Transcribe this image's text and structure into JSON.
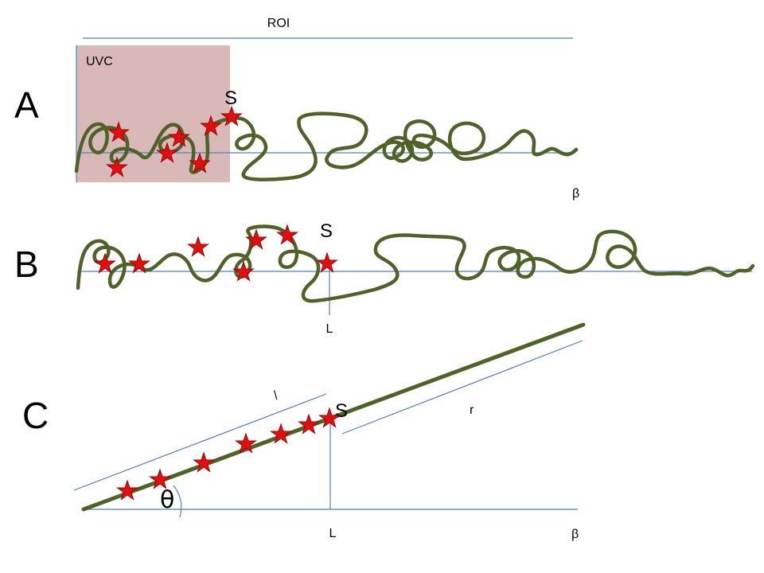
{
  "colors": {
    "chain": "#4f6228",
    "guide_line": "#4f81bd",
    "uvc_region": "#d9b8b8",
    "star_marker": "#e01010"
  },
  "labels": {
    "roi": "ROI",
    "uvc": "UVC",
    "panel_a": "A",
    "panel_b": "B",
    "panel_c": "C",
    "s_a": "S",
    "s_b": "S",
    "s_c": "S",
    "beta_a": "β",
    "beta_c": "β",
    "l_b": "L",
    "l_c": "L",
    "theta": "θ",
    "backslash": "\\",
    "r": "r"
  },
  "markers": {
    "panel_a_stars": 7,
    "panel_b_stars": 7,
    "panel_c_stars": 7
  }
}
